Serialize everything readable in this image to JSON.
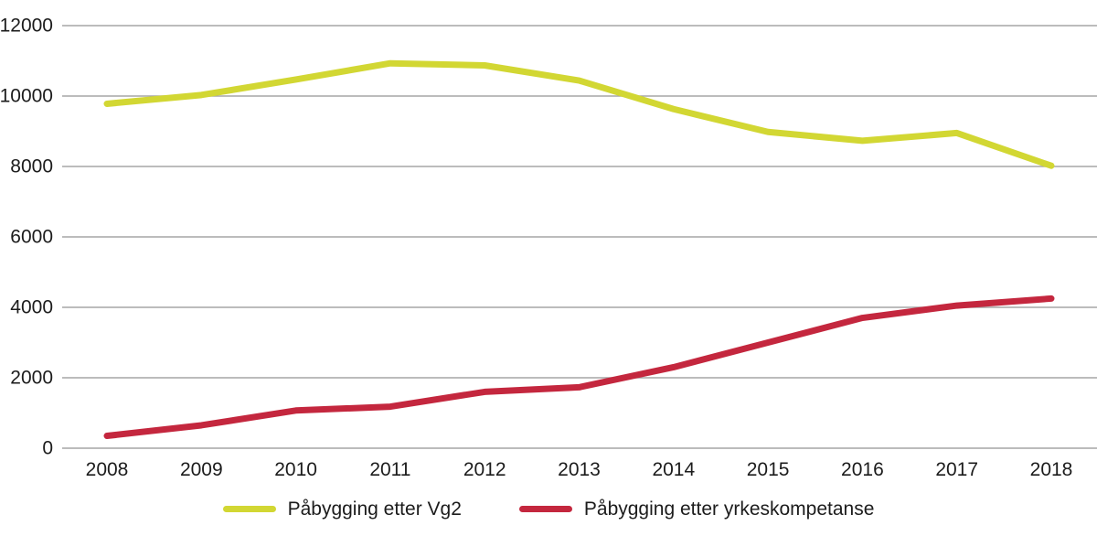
{
  "chart_data": {
    "type": "line",
    "title": "",
    "xlabel": "",
    "ylabel": "",
    "categories": [
      "2008",
      "2009",
      "2010",
      "2011",
      "2012",
      "2013",
      "2014",
      "2015",
      "2016",
      "2017",
      "2018"
    ],
    "series": [
      {
        "name": "Påbygging etter Vg2",
        "color": "#d2d733",
        "values": [
          9780,
          10030,
          10470,
          10930,
          10870,
          10440,
          9630,
          8980,
          8730,
          8950,
          8020
        ]
      },
      {
        "name": "Påbygging etter yrkeskompetanse",
        "color": "#c4273e",
        "values": [
          350,
          650,
          1070,
          1180,
          1600,
          1730,
          2300,
          3000,
          3700,
          4050,
          4250
        ]
      }
    ],
    "y_ticks": [
      0,
      2000,
      4000,
      6000,
      8000,
      10000,
      12000
    ],
    "ylim": [
      0,
      12000
    ],
    "grid": true,
    "gridline_color": "#a5a5a5",
    "text_color": "#1c1c1c",
    "legend_position": "bottom"
  }
}
